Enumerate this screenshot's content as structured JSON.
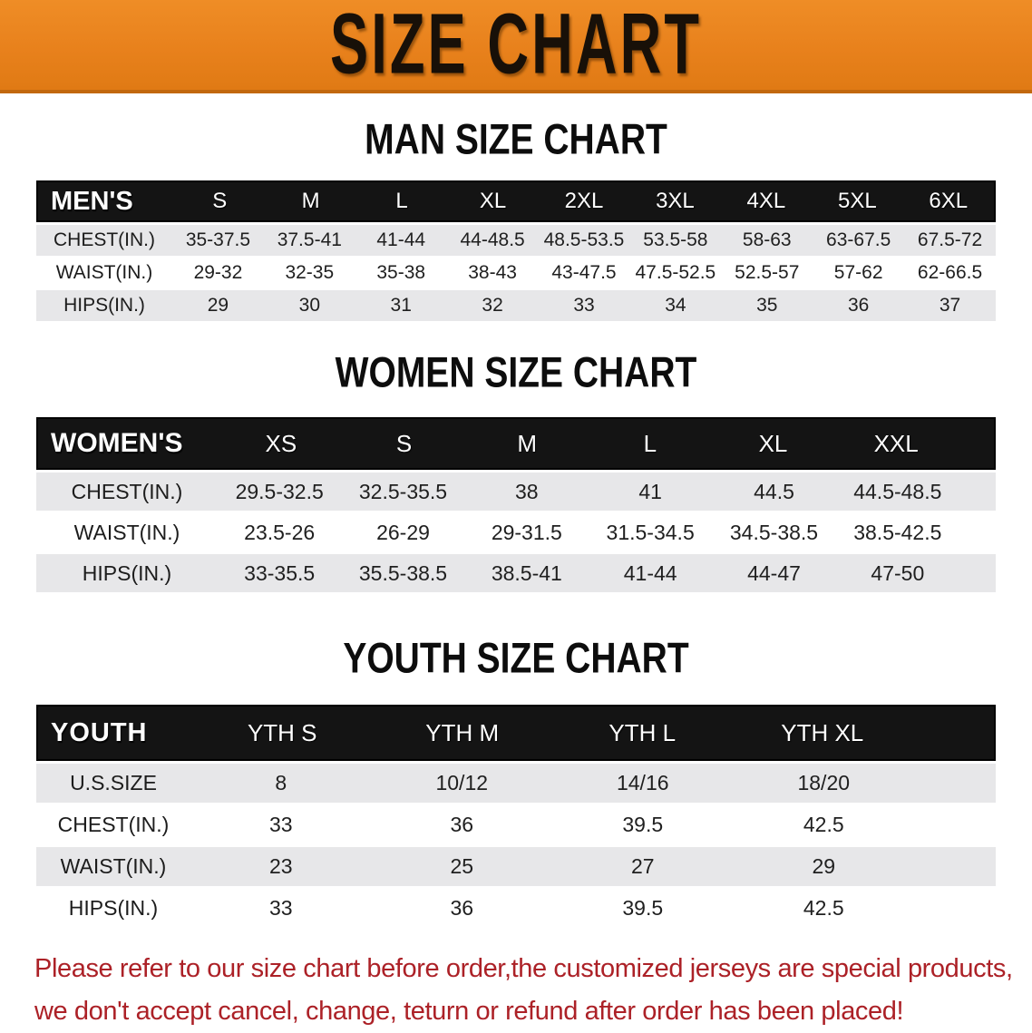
{
  "banner": {
    "title": "SIZE CHART",
    "bg_color": "#e8811c",
    "text_color": "#181008"
  },
  "sections": [
    {
      "heading": "MAN SIZE CHART",
      "table": {
        "header_label": "MEN'S",
        "columns": [
          "S",
          "M",
          "L",
          "XL",
          "2XL",
          "3XL",
          "4XL",
          "5XL",
          "6XL"
        ],
        "rows": [
          {
            "label": "CHEST(IN.)",
            "values": [
              "35-37.5",
              "37.5-41",
              "41-44",
              "44-48.5",
              "48.5-53.5",
              "53.5-58",
              "58-63",
              "63-67.5",
              "67.5-72"
            ]
          },
          {
            "label": "WAIST(IN.)",
            "values": [
              "29-32",
              "32-35",
              "35-38",
              "38-43",
              "43-47.5",
              "47.5-52.5",
              "52.5-57",
              "57-62",
              "62-66.5"
            ]
          },
          {
            "label": "HIPS(IN.)",
            "values": [
              "29",
              "30",
              "31",
              "32",
              "33",
              "34",
              "35",
              "36",
              "37"
            ]
          }
        ]
      }
    },
    {
      "heading": "WOMEN SIZE CHART",
      "table": {
        "header_label": "WOMEN'S",
        "columns": [
          "XS",
          "S",
          "M",
          "L",
          "XL",
          "XXL"
        ],
        "rows": [
          {
            "label": "CHEST(IN.)",
            "values": [
              "29.5-32.5",
              "32.5-35.5",
              "38",
              "41",
              "44.5",
              "44.5-48.5"
            ]
          },
          {
            "label": "WAIST(IN.)",
            "values": [
              "23.5-26",
              "26-29",
              "29-31.5",
              "31.5-34.5",
              "34.5-38.5",
              "38.5-42.5"
            ]
          },
          {
            "label": "HIPS(IN.)",
            "values": [
              "33-35.5",
              "35.5-38.5",
              "38.5-41",
              "41-44",
              "44-47",
              "47-50"
            ]
          }
        ]
      }
    },
    {
      "heading": "YOUTH SIZE CHART",
      "table": {
        "header_label": "YOUTH",
        "columns": [
          "YTH S",
          "YTH M",
          "YTH L",
          "YTH XL"
        ],
        "rows": [
          {
            "label": "U.S.SIZE",
            "values": [
              "8",
              "10/12",
              "14/16",
              "18/20"
            ]
          },
          {
            "label": "CHEST(IN.)",
            "values": [
              "33",
              "36",
              "39.5",
              "42.5"
            ]
          },
          {
            "label": "WAIST(IN.)",
            "values": [
              "23",
              "25",
              "27",
              "29"
            ]
          },
          {
            "label": "HIPS(IN.)",
            "values": [
              "33",
              "36",
              "39.5",
              "42.5"
            ]
          }
        ]
      }
    }
  ],
  "disclaimer": {
    "line1": "Please refer to our size chart before order,the customized jerseys are special products,",
    "line2": "we don't accept cancel, change, teturn or refund after order has been placed!",
    "color": "#ac2127"
  }
}
